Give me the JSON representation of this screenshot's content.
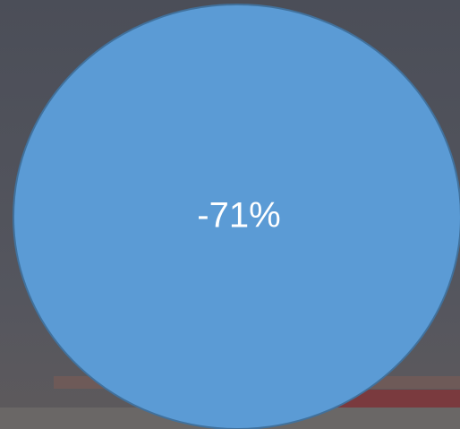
{
  "badge": {
    "label": "-71%"
  }
}
